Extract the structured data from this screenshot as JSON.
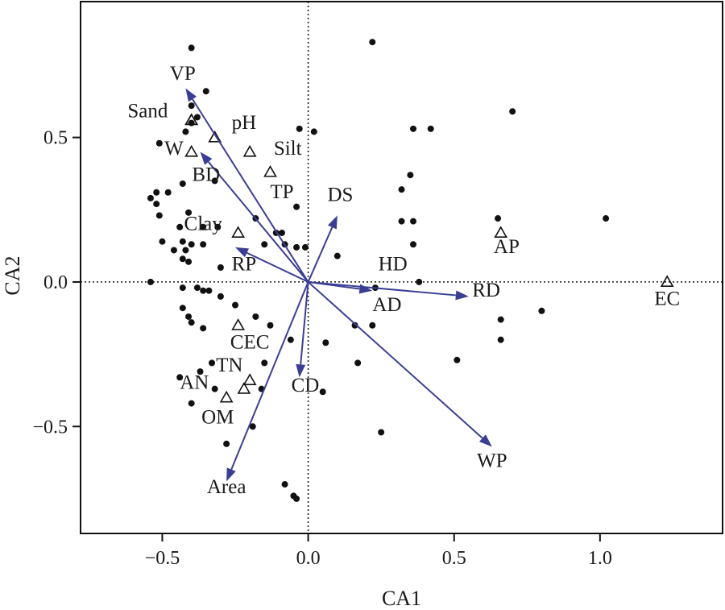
{
  "chart_data": {
    "type": "scatter",
    "xlabel": "CA1",
    "ylabel": "CA2",
    "xlim": [
      -0.78,
      1.42
    ],
    "ylim": [
      -0.87,
      0.97
    ],
    "xticks": [
      -0.5,
      0.0,
      0.5,
      1.0
    ],
    "xtick_labels": [
      "−0.5",
      "0.0",
      "0.5",
      "1.0"
    ],
    "yticks": [
      -0.5,
      0.0,
      0.5
    ],
    "ytick_labels": [
      "−0.5",
      "0.0",
      "0.5"
    ],
    "zero_lines": true,
    "sites": [
      [
        0.22,
        0.83
      ],
      [
        -0.4,
        0.81
      ],
      [
        -0.35,
        0.66
      ],
      [
        -0.4,
        0.61
      ],
      [
        0.7,
        0.59
      ],
      [
        -0.38,
        0.57
      ],
      [
        -0.4,
        0.55
      ],
      [
        -0.42,
        0.52
      ],
      [
        -0.03,
        0.53
      ],
      [
        0.02,
        0.52
      ],
      [
        0.36,
        0.53
      ],
      [
        0.42,
        0.53
      ],
      [
        -0.51,
        0.48
      ],
      [
        -0.32,
        0.35
      ],
      [
        -0.43,
        0.34
      ],
      [
        0.35,
        0.37
      ],
      [
        0.32,
        0.32
      ],
      [
        -0.52,
        0.31
      ],
      [
        -0.48,
        0.31
      ],
      [
        -0.54,
        0.29
      ],
      [
        -0.52,
        0.27
      ],
      [
        -0.04,
        0.26
      ],
      [
        -0.51,
        0.23
      ],
      [
        -0.41,
        0.24
      ],
      [
        -0.18,
        0.22
      ],
      [
        0.32,
        0.21
      ],
      [
        0.36,
        0.21
      ],
      [
        0.65,
        0.22
      ],
      [
        1.02,
        0.22
      ],
      [
        -0.44,
        0.19
      ],
      [
        -0.36,
        0.19
      ],
      [
        -0.31,
        0.19
      ],
      [
        -0.11,
        0.17
      ],
      [
        -0.09,
        0.17
      ],
      [
        -0.5,
        0.14
      ],
      [
        -0.43,
        0.14
      ],
      [
        -0.4,
        0.13
      ],
      [
        -0.36,
        0.13
      ],
      [
        -0.15,
        0.13
      ],
      [
        -0.08,
        0.13
      ],
      [
        -0.04,
        0.12
      ],
      [
        -0.01,
        0.12
      ],
      [
        -0.46,
        0.11
      ],
      [
        -0.42,
        0.11
      ],
      [
        0.36,
        0.13
      ],
      [
        0.1,
        0.09
      ],
      [
        -0.43,
        0.08
      ],
      [
        -0.41,
        0.07
      ],
      [
        -0.3,
        0.05
      ],
      [
        -0.54,
        0.0
      ],
      [
        0.38,
        0.0
      ],
      [
        -0.43,
        -0.02
      ],
      [
        -0.38,
        -0.02
      ],
      [
        -0.36,
        -0.03
      ],
      [
        -0.34,
        -0.03
      ],
      [
        0.23,
        -0.02
      ],
      [
        -0.3,
        -0.05
      ],
      [
        -0.43,
        -0.09
      ],
      [
        -0.25,
        -0.08
      ],
      [
        -0.18,
        -0.12
      ],
      [
        -0.41,
        -0.12
      ],
      [
        -0.4,
        -0.14
      ],
      [
        -0.13,
        -0.15
      ],
      [
        0.8,
        -0.1
      ],
      [
        0.66,
        -0.13
      ],
      [
        -0.36,
        -0.16
      ],
      [
        0.16,
        -0.15
      ],
      [
        0.22,
        -0.15
      ],
      [
        0.66,
        -0.2
      ],
      [
        -0.06,
        -0.2
      ],
      [
        0.06,
        -0.21
      ],
      [
        0.51,
        -0.27
      ],
      [
        0.17,
        -0.28
      ],
      [
        -0.15,
        -0.28
      ],
      [
        -0.33,
        -0.28
      ],
      [
        -0.37,
        -0.31
      ],
      [
        -0.44,
        -0.33
      ],
      [
        -0.16,
        -0.37
      ],
      [
        -0.32,
        -0.37
      ],
      [
        0.05,
        -0.38
      ],
      [
        -0.4,
        -0.42
      ],
      [
        -0.19,
        -0.5
      ],
      [
        0.25,
        -0.52
      ],
      [
        -0.28,
        -0.56
      ],
      [
        -0.08,
        -0.7
      ],
      [
        -0.05,
        -0.74
      ],
      [
        -0.04,
        -0.75
      ]
    ],
    "species": [
      {
        "label": "VP",
        "x": -0.4,
        "y": 0.56
      },
      {
        "label": "pH",
        "x": -0.32,
        "y": 0.5
      },
      {
        "label": "Sand",
        "x": -0.4,
        "y": 0.56
      },
      {
        "label": "W",
        "x": -0.4,
        "y": 0.45
      },
      {
        "label": "Silt",
        "x": -0.2,
        "y": 0.45
      },
      {
        "label": "TP",
        "x": -0.13,
        "y": 0.38
      },
      {
        "label": "Clay",
        "x": -0.24,
        "y": 0.17
      },
      {
        "label": "AP",
        "x": 0.66,
        "y": 0.17
      },
      {
        "label": "EC",
        "x": 1.23,
        "y": 0.0
      },
      {
        "label": "CEC",
        "x": -0.24,
        "y": -0.15
      },
      {
        "label": "TN",
        "x": -0.2,
        "y": -0.34
      },
      {
        "label": "AN",
        "x": -0.22,
        "y": -0.37
      },
      {
        "label": "OM",
        "x": -0.28,
        "y": -0.4
      }
    ],
    "arrows": [
      {
        "label": "VP",
        "x": -0.42,
        "y": 0.67
      },
      {
        "label": "W",
        "x": -0.37,
        "y": 0.45
      },
      {
        "label": "RP",
        "x": -0.25,
        "y": 0.12
      },
      {
        "label": "DS",
        "x": 0.1,
        "y": 0.23
      },
      {
        "label": "HD",
        "x": 0.22,
        "y": -0.03
      },
      {
        "label": "RD",
        "x": 0.55,
        "y": -0.05
      },
      {
        "label": "WP",
        "x": 0.63,
        "y": -0.57
      },
      {
        "label": "CD",
        "x": -0.03,
        "y": -0.33
      },
      {
        "label": "Area",
        "x": -0.28,
        "y": -0.69
      }
    ],
    "labels": [
      {
        "text": "VP",
        "x": -0.43,
        "y": 0.7
      },
      {
        "text": "Sand",
        "x": -0.55,
        "y": 0.57
      },
      {
        "text": "pH",
        "x": -0.22,
        "y": 0.53
      },
      {
        "text": "W",
        "x": -0.46,
        "y": 0.44
      },
      {
        "text": "Silt",
        "x": -0.07,
        "y": 0.44
      },
      {
        "text": "BD",
        "x": -0.35,
        "y": 0.35
      },
      {
        "text": "TP",
        "x": -0.09,
        "y": 0.29
      },
      {
        "text": "DS",
        "x": 0.11,
        "y": 0.28
      },
      {
        "text": "Clay",
        "x": -0.36,
        "y": 0.18
      },
      {
        "text": "AP",
        "x": 0.68,
        "y": 0.1
      },
      {
        "text": "RP",
        "x": -0.22,
        "y": 0.04
      },
      {
        "text": "HD",
        "x": 0.29,
        "y": 0.04
      },
      {
        "text": "RD",
        "x": 0.61,
        "y": -0.05
      },
      {
        "text": "EC",
        "x": 1.23,
        "y": -0.08
      },
      {
        "text": "AD",
        "x": 0.27,
        "y": -0.1
      },
      {
        "text": "CEC",
        "x": -0.2,
        "y": -0.23
      },
      {
        "text": "TN",
        "x": -0.27,
        "y": -0.31
      },
      {
        "text": "AN",
        "x": -0.39,
        "y": -0.37
      },
      {
        "text": "CD",
        "x": -0.01,
        "y": -0.38
      },
      {
        "text": "OM",
        "x": -0.31,
        "y": -0.49
      },
      {
        "text": "WP",
        "x": 0.63,
        "y": -0.64
      },
      {
        "text": "Area",
        "x": -0.28,
        "y": -0.73
      }
    ]
  }
}
